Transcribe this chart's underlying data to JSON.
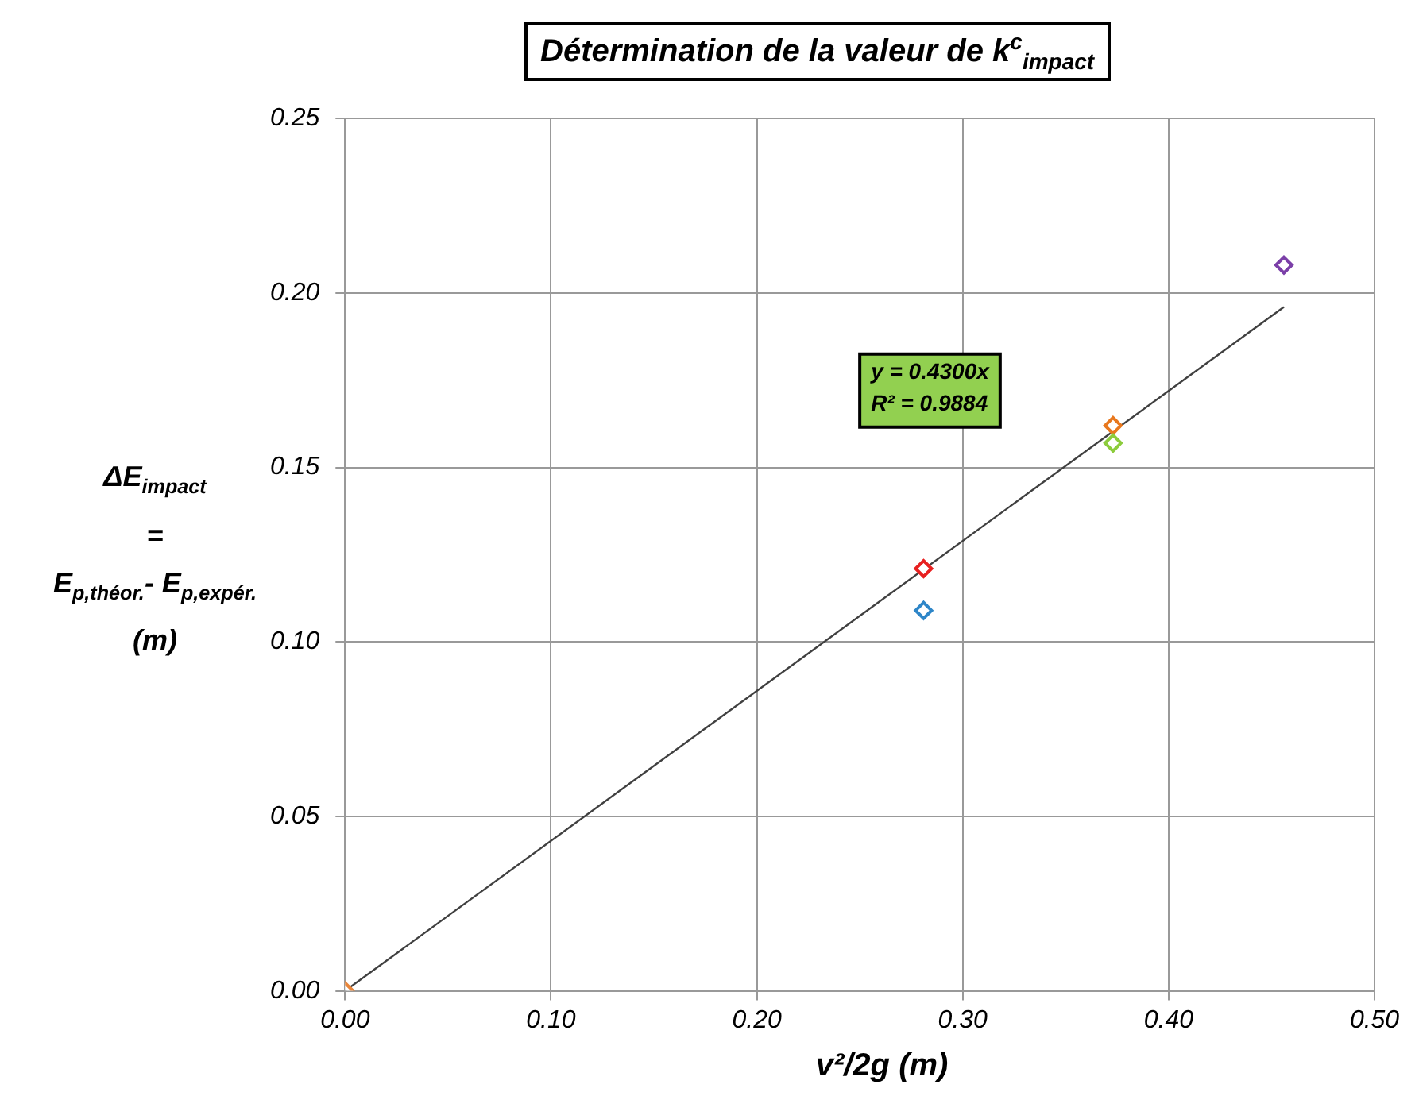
{
  "chart_data": {
    "type": "scatter",
    "title": "Détermination de la valeur de k$^{c}$$_{impact}$",
    "xlabel": "v²/2g (m)",
    "ylabel": "ΔE$_{impact}$\n=\nE$_{p,théor.}$- E$_{p,expér.}$\n(m)",
    "annotations": [
      "y = 0.4300x\nR² = 0.9884"
    ],
    "x": [
      0,
      0.281,
      0.281,
      0.373,
      0.373,
      0.456
    ],
    "series": [
      {
        "values": [
          0,
          0.109,
          0.121,
          0.162,
          0.157,
          0.208
        ],
        "colors": [
          "#e8853a",
          "#2e86c8",
          "#e82020",
          "#e8781e",
          "#8ccc3c",
          "#7b3fa8"
        ]
      },
      {
        "type": "line",
        "x": [
          0,
          0.456
        ],
        "values": [
          0,
          0.196
        ],
        "color": "#404040",
        "marker": "none"
      }
    ],
    "xlim": [
      0,
      0.5
    ],
    "xticks": [
      {
        "value": 0,
        "label": "0.00"
      },
      {
        "value": 0.1,
        "label": "0.10"
      },
      {
        "value": 0.2,
        "label": "0.20"
      },
      {
        "value": 0.3,
        "label": "0.30"
      },
      {
        "value": 0.4,
        "label": "0.40"
      },
      {
        "value": 0.5,
        "label": "0.50"
      }
    ],
    "ylim": [
      0,
      0.25
    ],
    "yticks": [
      {
        "value": 0,
        "label": "0.00"
      },
      {
        "value": 0.05,
        "label": "0.05"
      },
      {
        "value": 0.1,
        "label": "0.10"
      },
      {
        "value": 0.15,
        "label": "0.15"
      },
      {
        "value": 0.2,
        "label": "0.20"
      },
      {
        "value": 0.25,
        "label": "0.25"
      }
    ],
    "grid": true,
    "marker": "diamond"
  }
}
